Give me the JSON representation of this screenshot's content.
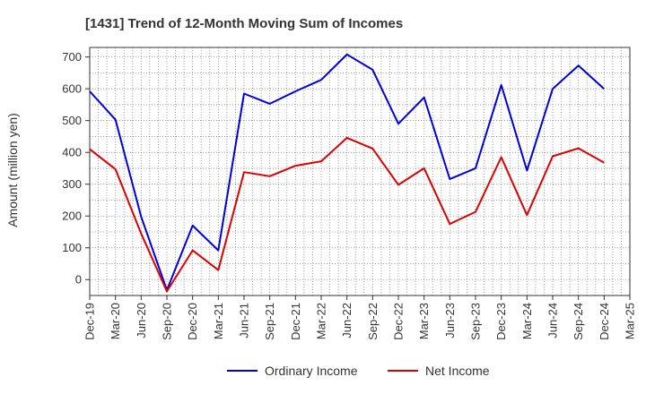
{
  "chart_data": {
    "type": "line",
    "title": "[1431]  Trend of 12-Month Moving Sum of Incomes",
    "xlabel": "",
    "ylabel": "Amount (million yen)",
    "ylim": [
      -50,
      730
    ],
    "yticks": [
      0,
      100,
      200,
      300,
      400,
      500,
      600,
      700
    ],
    "grid": true,
    "legend_position": "bottom",
    "categories": [
      "Dec-19",
      "Mar-20",
      "Jun-20",
      "Sep-20",
      "Dec-20",
      "Mar-21",
      "Jun-21",
      "Sep-21",
      "Dec-21",
      "Mar-22",
      "Jun-22",
      "Sep-22",
      "Dec-22",
      "Mar-23",
      "Jun-23",
      "Sep-23",
      "Dec-23",
      "Mar-24",
      "Jun-24",
      "Sep-24",
      "Dec-24",
      "Mar-25"
    ],
    "series": [
      {
        "name": "Ordinary Income",
        "color": "#0000dd",
        "values": [
          592,
          503,
          198,
          -33,
          170,
          92,
          585,
          553,
          592,
          628,
          708,
          660,
          490,
          573,
          316,
          350,
          612,
          343,
          600,
          673,
          600,
          null
        ]
      },
      {
        "name": "Net Income",
        "color": "#dd0000",
        "values": [
          410,
          347,
          145,
          -37,
          92,
          30,
          338,
          325,
          358,
          372,
          446,
          412,
          298,
          350,
          175,
          213,
          385,
          203,
          388,
          413,
          368,
          null
        ]
      }
    ]
  }
}
